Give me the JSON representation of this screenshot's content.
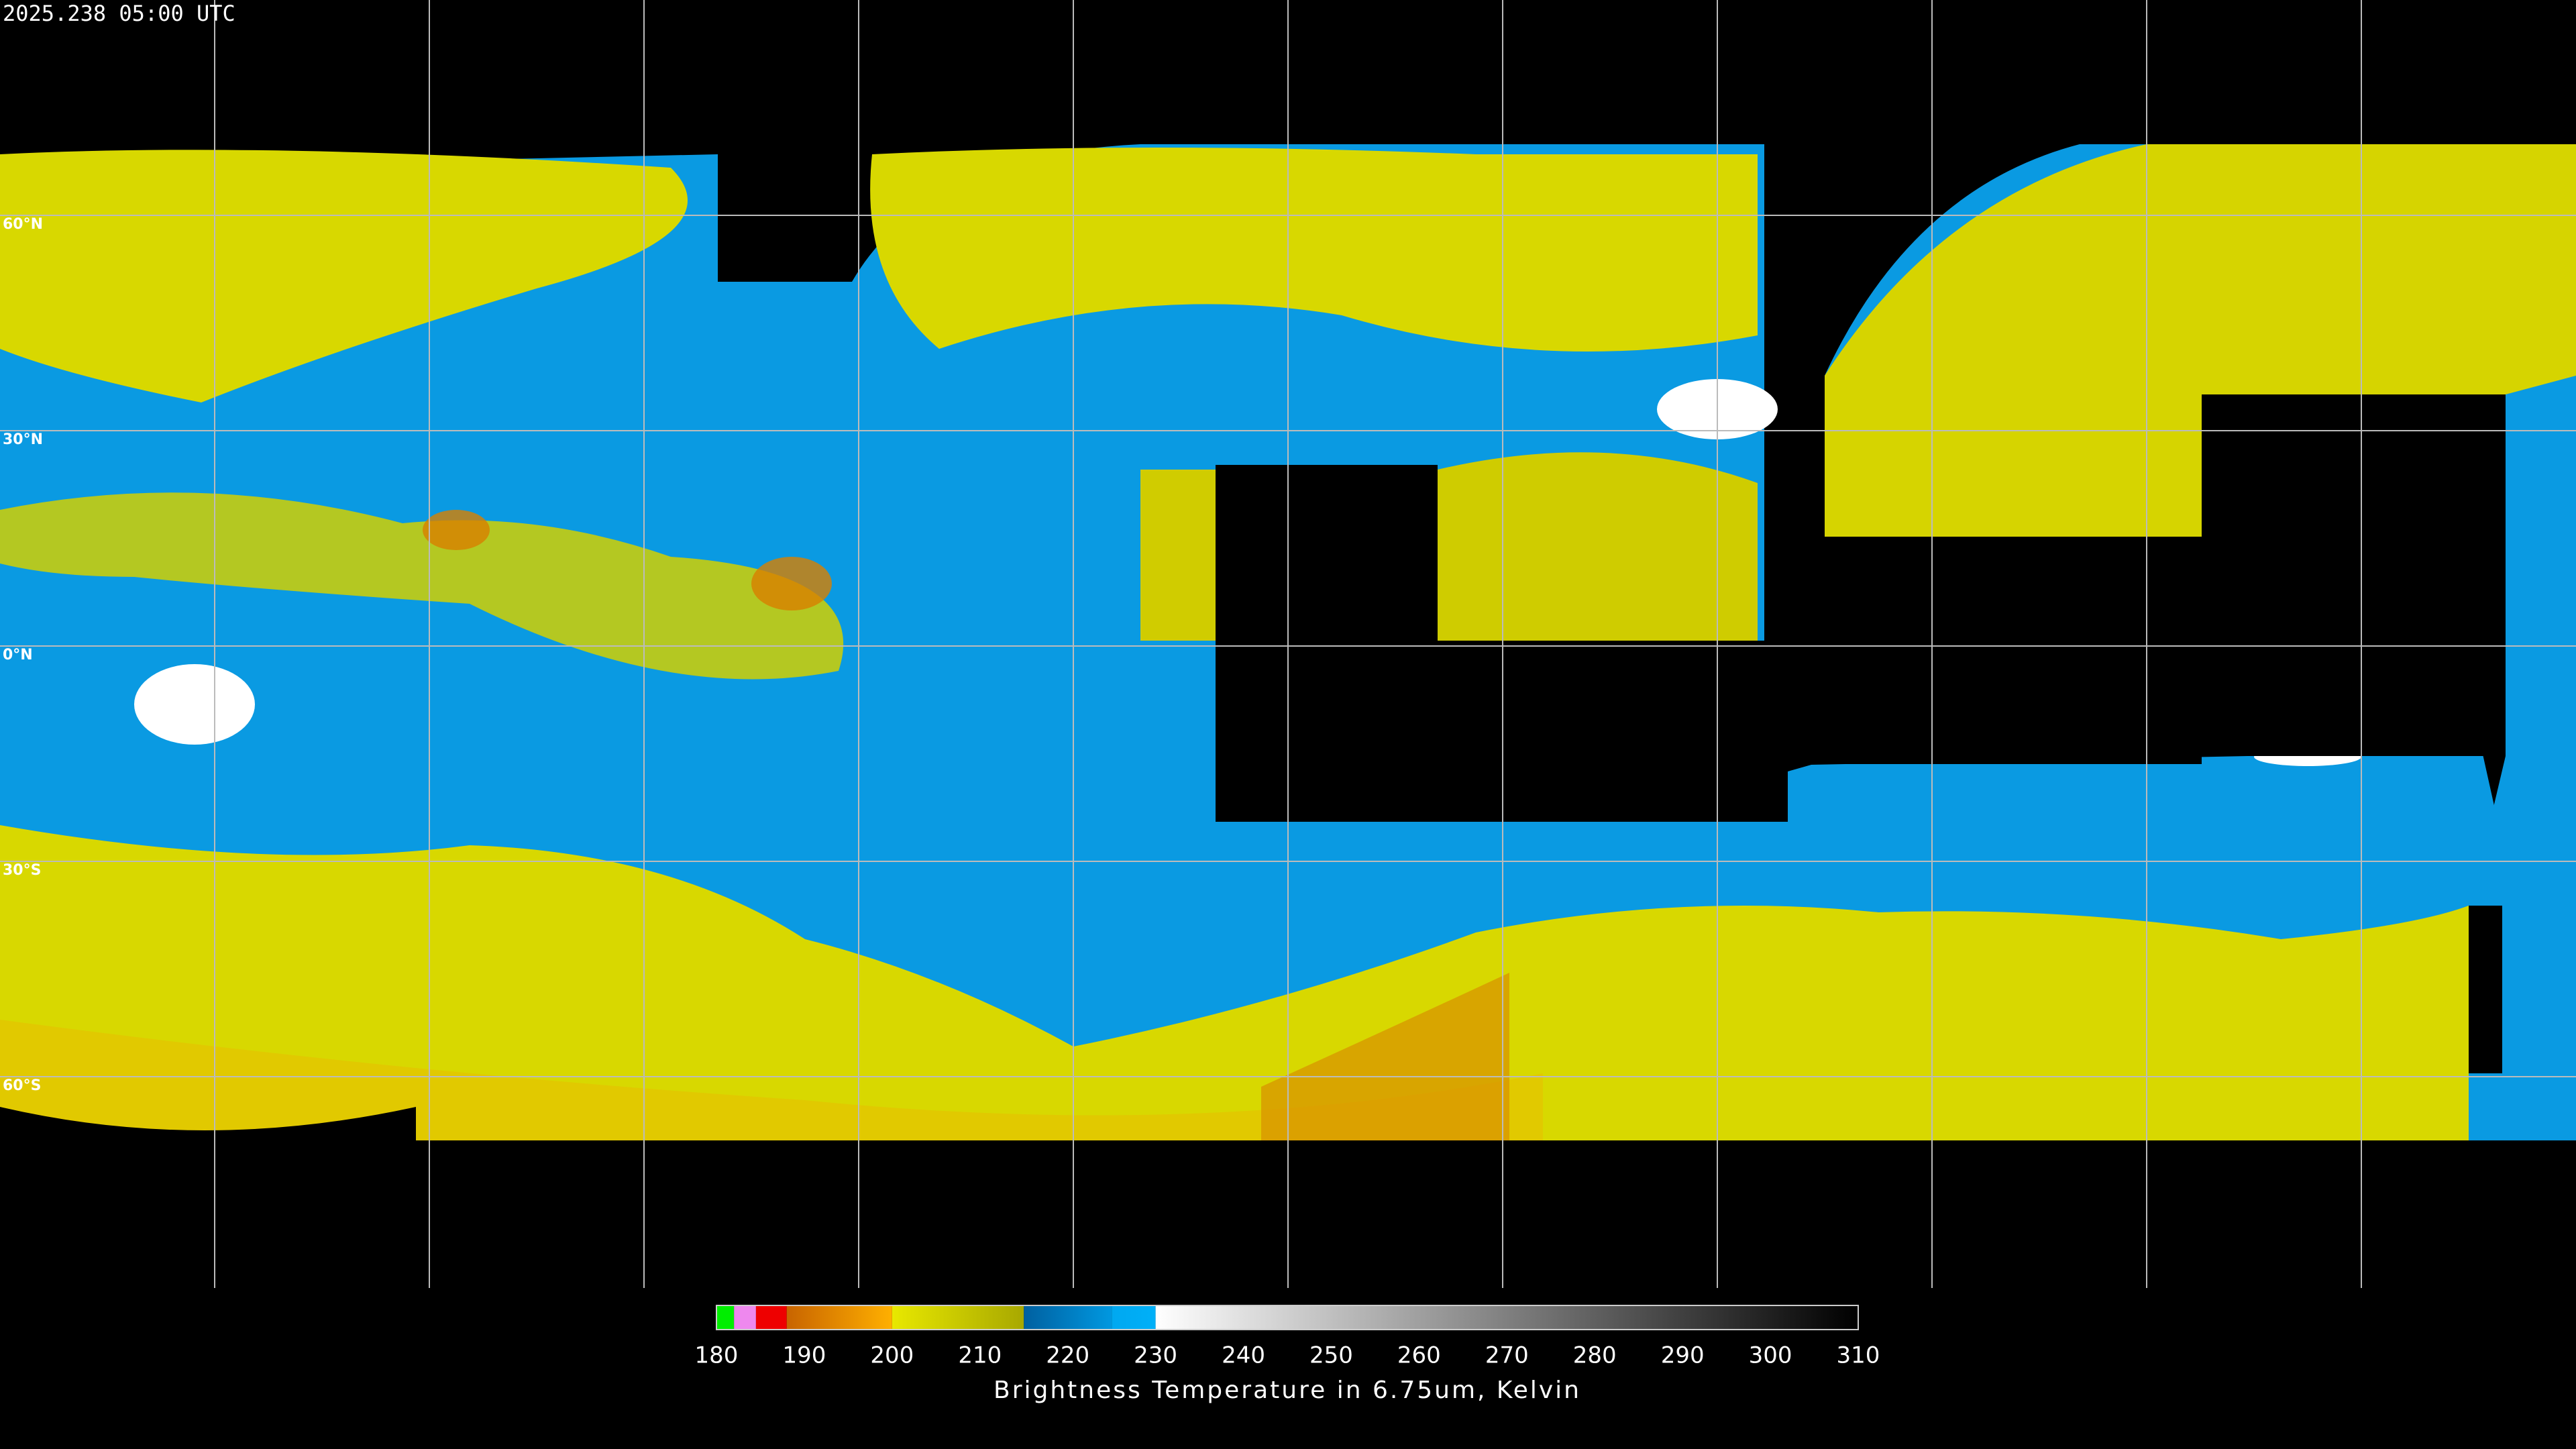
{
  "timestamp": "2025.238 05:00 UTC",
  "latitude_labels": [
    "60°N",
    "30°N",
    "0°N",
    "30°S",
    "60°S"
  ],
  "colorbar": {
    "range": [
      180,
      310
    ],
    "ticks": [
      180,
      190,
      200,
      210,
      220,
      230,
      240,
      250,
      260,
      270,
      280,
      290,
      300,
      310
    ],
    "label": "Brightness Temperature in 6.75um, Kelvin",
    "segments": [
      {
        "from": 180,
        "to": 182,
        "colors": [
          "#00ee00",
          "#00ee00"
        ]
      },
      {
        "from": 182,
        "to": 184.5,
        "colors": [
          "#ee88ee",
          "#ee88ee"
        ]
      },
      {
        "from": 184.5,
        "to": 188,
        "colors": [
          "#ee0000",
          "#ee0000"
        ]
      },
      {
        "from": 188,
        "to": 200,
        "colors": [
          "#c86400",
          "#ffb000"
        ]
      },
      {
        "from": 200,
        "to": 215,
        "colors": [
          "#e8e800",
          "#a8a800"
        ]
      },
      {
        "from": 215,
        "to": 225,
        "colors": [
          "#0060a0",
          "#0098e0"
        ]
      },
      {
        "from": 225,
        "to": 230,
        "colors": [
          "#00a8f0",
          "#00b0f8"
        ]
      },
      {
        "from": 230,
        "to": 310,
        "colors": [
          "#ffffff",
          "#000000"
        ]
      }
    ]
  }
}
